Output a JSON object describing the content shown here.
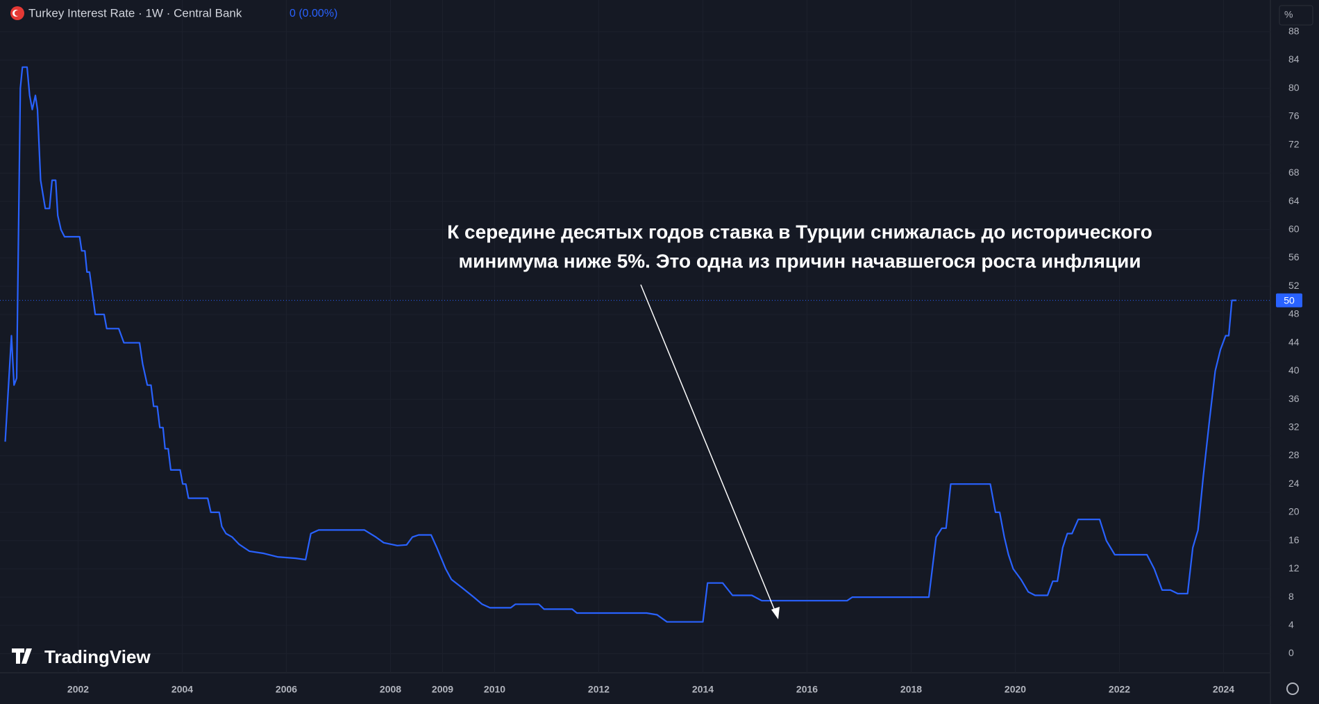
{
  "chart_data": {
    "type": "line",
    "title": "Turkey Interest Rate · 1W · Central Bank",
    "change_label": "0 (0.00%)",
    "unit_label": "%",
    "logo": "TradingView",
    "annotation": [
      "К середине десятых годов ставка в Турции снижалась до исторического",
      "минимума ниже 5%. Это одна из причин начавшегося роста инфляции"
    ],
    "x": [
      2000.6,
      2000.72,
      2000.77,
      2000.82,
      2000.89,
      2000.93,
      2001.02,
      2001.07,
      2001.12,
      2001.18,
      2001.22,
      2001.28,
      2001.37,
      2001.45,
      2001.5,
      2001.57,
      2001.61,
      2001.67,
      2001.74,
      2002.03,
      2002.07,
      2002.13,
      2002.17,
      2002.22,
      2002.33,
      2002.5,
      2002.55,
      2002.78,
      2002.88,
      2003.18,
      2003.24,
      2003.33,
      2003.4,
      2003.45,
      2003.52,
      2003.57,
      2003.63,
      2003.67,
      2003.73,
      2003.78,
      2003.96,
      2004.01,
      2004.07,
      2004.12,
      2004.49,
      2004.55,
      2004.71,
      2004.76,
      2004.84,
      2004.96,
      2005.09,
      2005.29,
      2005.56,
      2005.83,
      2006.18,
      2006.37,
      2006.47,
      2006.62,
      2007.5,
      2007.72,
      2007.87,
      2008.13,
      2008.31,
      2008.42,
      2008.54,
      2008.78,
      2008.89,
      2009.06,
      2009.17,
      2009.38,
      2009.6,
      2009.76,
      2009.91,
      2010.31,
      2010.4,
      2010.85,
      2010.95,
      2011.49,
      2011.58,
      2012.92,
      2013.12,
      2013.31,
      2014.0,
      2014.09,
      2014.38,
      2014.57,
      2014.94,
      2015.13,
      2016.77,
      2016.87,
      2018.34,
      2018.48,
      2018.59,
      2018.67,
      2018.76,
      2019.52,
      2019.62,
      2019.7,
      2019.79,
      2019.87,
      2019.96,
      2020.11,
      2020.25,
      2020.38,
      2020.62,
      2020.72,
      2020.81,
      2020.91,
      2021.0,
      2021.09,
      2021.21,
      2021.62,
      2021.75,
      2021.91,
      2022.53,
      2022.67,
      2022.82,
      2022.98,
      2023.12,
      2023.31,
      2023.41,
      2023.51,
      2023.61,
      2023.73,
      2023.84,
      2023.94,
      2024.04,
      2024.1,
      2024.16,
      2024.25
    ],
    "series": [
      {
        "color": "#2962ff",
        "values": [
          30,
          45,
          38,
          39,
          80,
          83,
          83,
          79,
          77,
          79,
          77,
          67,
          63,
          63,
          67,
          67,
          62,
          60,
          59,
          59,
          57,
          57,
          54,
          54,
          48,
          48,
          46,
          46,
          44,
          44,
          41,
          38,
          38,
          35,
          35,
          32,
          32,
          29,
          29,
          26,
          26,
          24,
          24,
          22,
          22,
          20,
          20,
          18,
          17,
          16.5,
          15.5,
          14.5,
          14.2,
          13.7,
          13.5,
          13.3,
          17,
          17.5,
          17.5,
          16.5,
          15.7,
          15.3,
          15.4,
          16.5,
          16.8,
          16.8,
          15,
          12,
          10.5,
          9.3,
          8,
          7,
          6.5,
          6.5,
          7,
          7,
          6.3,
          6.3,
          5.75,
          5.75,
          5.5,
          4.5,
          4.5,
          10,
          10,
          8.25,
          8.25,
          7.5,
          7.5,
          8,
          8,
          16.5,
          17.75,
          17.75,
          24,
          24,
          20,
          20,
          16.5,
          14,
          12,
          10.5,
          8.75,
          8.25,
          8.25,
          10.25,
          10.25,
          15,
          17,
          17,
          19,
          19,
          16,
          14,
          14,
          12,
          9,
          9,
          8.5,
          8.5,
          15,
          17.5,
          25,
          33,
          40,
          43,
          45,
          45,
          50,
          50
        ]
      }
    ],
    "xlim": [
      2000.5,
      2024.9
    ],
    "xticks": [
      2002,
      2004,
      2006,
      2008,
      2009,
      2010,
      2012,
      2014,
      2016,
      2018,
      2020,
      2022,
      2024
    ],
    "ylim": [
      -2.7,
      92.5
    ],
    "yticks": [
      0,
      4,
      8,
      12,
      16,
      20,
      24,
      28,
      32,
      36,
      40,
      44,
      48,
      52,
      56,
      60,
      64,
      68,
      72,
      76,
      80,
      84,
      88
    ],
    "grid": true
  }
}
